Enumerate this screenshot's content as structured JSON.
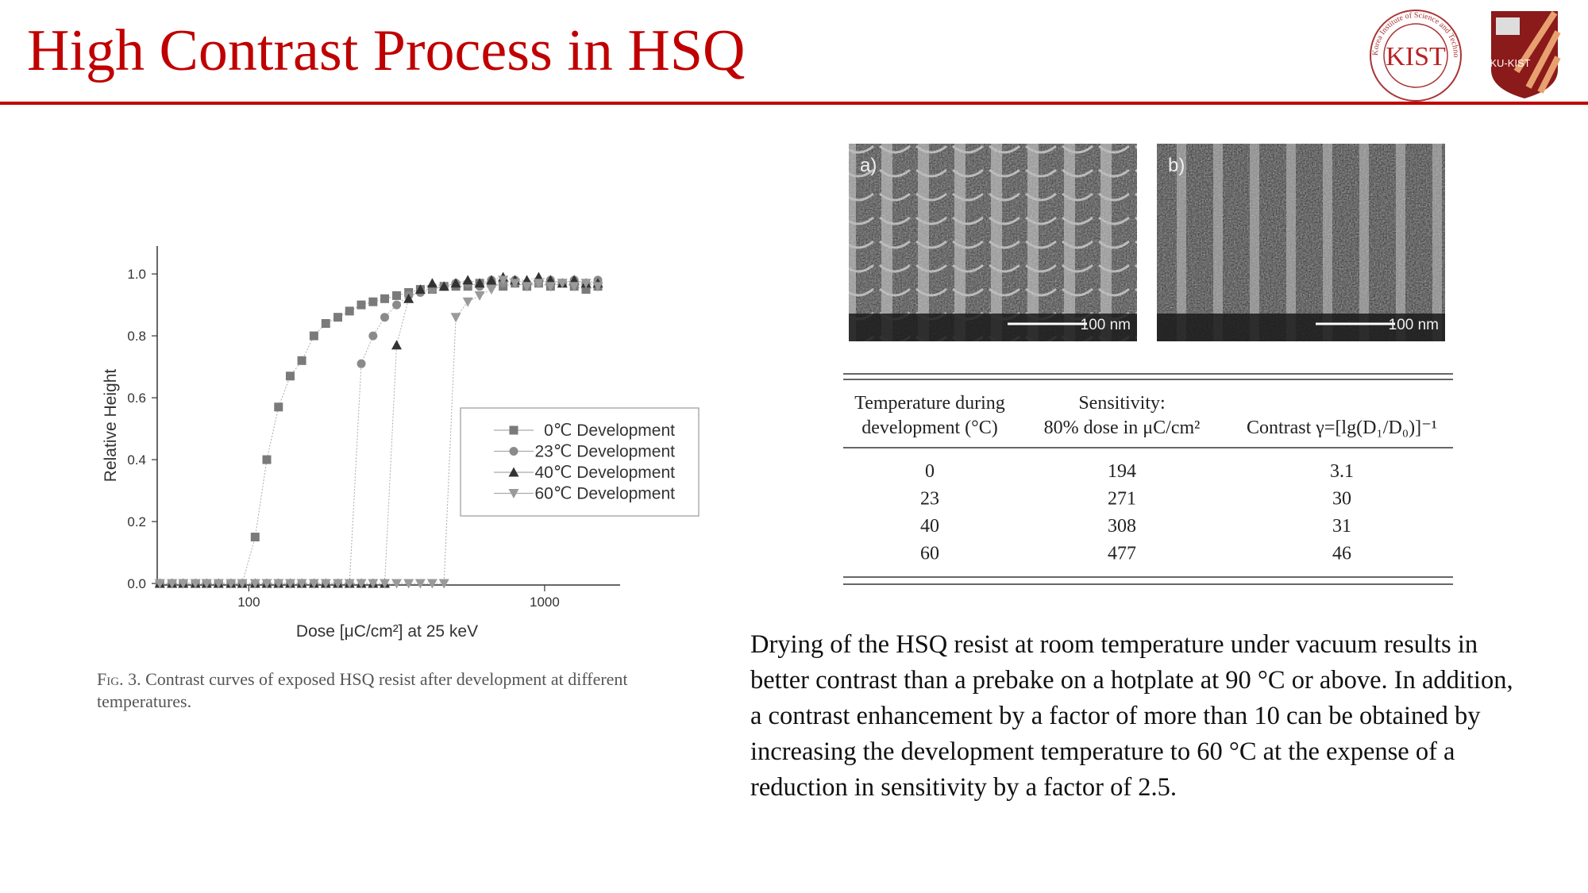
{
  "header": {
    "title": "High Contrast Process in HSQ",
    "logos": {
      "kist": "KIST",
      "kist_ring": "Korea Institute of Science and Technology",
      "ku_kist": "KU-KIST"
    }
  },
  "chart_data": {
    "type": "line",
    "x_label": "Dose [μC/cm²] at 25 keV",
    "y_label": "Relative Height",
    "log_x": true,
    "grid": false,
    "legend": "right",
    "xlim": [
      49,
      1800
    ],
    "xticks": [
      100,
      1000
    ],
    "ylim": [
      -0.005,
      1.09
    ],
    "yticks": [
      {
        "value": 0,
        "label": "0.0"
      },
      0.2,
      0.4,
      0.6,
      0.8,
      {
        "value": 1,
        "label": "1.0"
      }
    ],
    "x": [
      50,
      55,
      60,
      66,
      72,
      79,
      87,
      95,
      105,
      115,
      126,
      138,
      151,
      166,
      182,
      200,
      219,
      240,
      263,
      288,
      316,
      347,
      380,
      417,
      457,
      501,
      550,
      603,
      661,
      724,
      794,
      871,
      955,
      1047,
      1148,
      1259,
      1380,
      1514
    ],
    "series": [
      {
        "name": "0℃ Development",
        "marker": "square",
        "color": "#7a7a7a",
        "values": [
          0,
          0,
          0,
          0,
          0,
          0,
          0,
          0,
          0.15,
          0.4,
          0.57,
          0.67,
          0.72,
          0.8,
          0.84,
          0.86,
          0.88,
          0.9,
          0.91,
          0.92,
          0.93,
          0.94,
          0.95,
          0.95,
          0.96,
          0.96,
          0.96,
          0.97,
          0.97,
          0.96,
          0.97,
          0.96,
          0.97,
          0.96,
          0.97,
          0.96,
          0.95,
          0.96
        ]
      },
      {
        "name": "23℃ Development",
        "marker": "circle",
        "color": "#8a8a8a",
        "values": [
          0,
          0,
          0,
          0,
          0,
          0,
          0,
          0,
          0,
          0,
          0,
          0,
          0,
          0,
          0,
          0,
          0,
          0.71,
          0.8,
          0.86,
          0.9,
          0.93,
          0.94,
          0.95,
          0.96,
          0.97,
          0.97,
          0.96,
          0.98,
          0.97,
          0.98,
          0.97,
          0.97,
          0.98,
          0.97,
          0.98,
          0.97,
          0.98
        ]
      },
      {
        "name": "40℃ Development",
        "marker": "triangle",
        "color": "#333333",
        "values": [
          0,
          0,
          0,
          0,
          0,
          0,
          0,
          0,
          0,
          0,
          0,
          0,
          0,
          0,
          0,
          0,
          0,
          0,
          0,
          0,
          0.77,
          0.92,
          0.95,
          0.97,
          0.96,
          0.97,
          0.98,
          0.97,
          0.98,
          0.99,
          0.98,
          0.98,
          0.99,
          0.98,
          0.97,
          0.98,
          0.97,
          0.97
        ]
      },
      {
        "name": "60℃ Development",
        "marker": "triangle-down",
        "color": "#9a9a9a",
        "values": [
          0,
          0,
          0,
          0,
          0,
          0,
          0,
          0,
          0,
          0,
          0,
          0,
          0,
          0,
          0,
          0,
          0,
          0,
          0,
          0,
          0,
          0,
          0,
          0,
          0,
          0.86,
          0.91,
          0.93,
          0.95,
          0.98,
          0.97,
          0.96,
          0.97,
          0.96,
          0.97,
          0.96,
          0.97,
          0.96
        ]
      }
    ]
  },
  "figure_caption": {
    "prefix": "Fig. 3.",
    "text": "Contrast curves of exposed HSQ resist after development at different temperatures."
  },
  "images": [
    {
      "label": "a)",
      "scale": "100 nm"
    },
    {
      "label": "b)",
      "scale": "100 nm"
    }
  ],
  "table": {
    "headers": [
      [
        "Temperature during",
        "development (°C)"
      ],
      [
        "Sensitivity:",
        "80% dose in μC/cm²"
      ],
      [
        "Contrast γ=[lg(D₁/D₀)]⁻¹"
      ]
    ],
    "rows": [
      [
        0,
        194,
        3.1
      ],
      [
        23,
        271,
        30
      ],
      [
        40,
        308,
        31
      ],
      [
        60,
        477,
        46
      ]
    ]
  },
  "body_text": "Drying of the HSQ resist at room temperature under vacuum results in better contrast than a prebake on a hotplate at 90 °C or above. In addition, a contrast enhancement by a factor of more than 10 can be obtained by increasing the development temperature to 60 °C at the expense of a reduction in sensitivity by a factor of 2.5."
}
